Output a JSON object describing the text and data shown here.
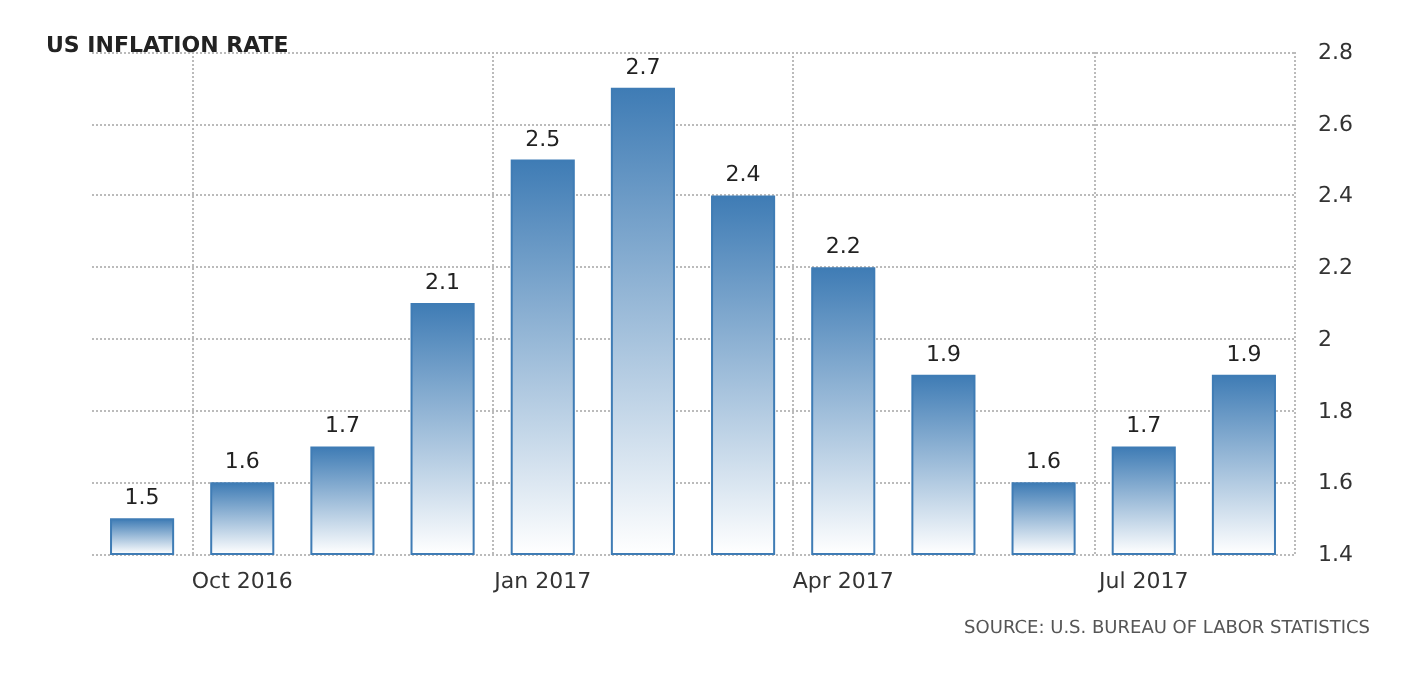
{
  "chart_data": {
    "type": "bar",
    "title": "US INFLATION RATE",
    "categories": [
      null,
      "Oct 2016",
      null,
      null,
      "Jan 2017",
      null,
      null,
      "Apr 2017",
      null,
      null,
      "Jul 2017",
      null
    ],
    "values": [
      1.5,
      1.6,
      1.7,
      2.1,
      2.5,
      2.7,
      2.4,
      2.2,
      1.9,
      1.6,
      1.7,
      1.9
    ],
    "color": "#3f7cb5",
    "ylim": [
      1.4,
      2.8
    ],
    "yticks": [
      1.4,
      1.6,
      1.8,
      2,
      2.2,
      2.4,
      2.6,
      2.8
    ],
    "grid": true,
    "data_labels": true,
    "annotations": [
      "SOURCE: U.S. BUREAU OF LABOR STATISTICS"
    ]
  }
}
